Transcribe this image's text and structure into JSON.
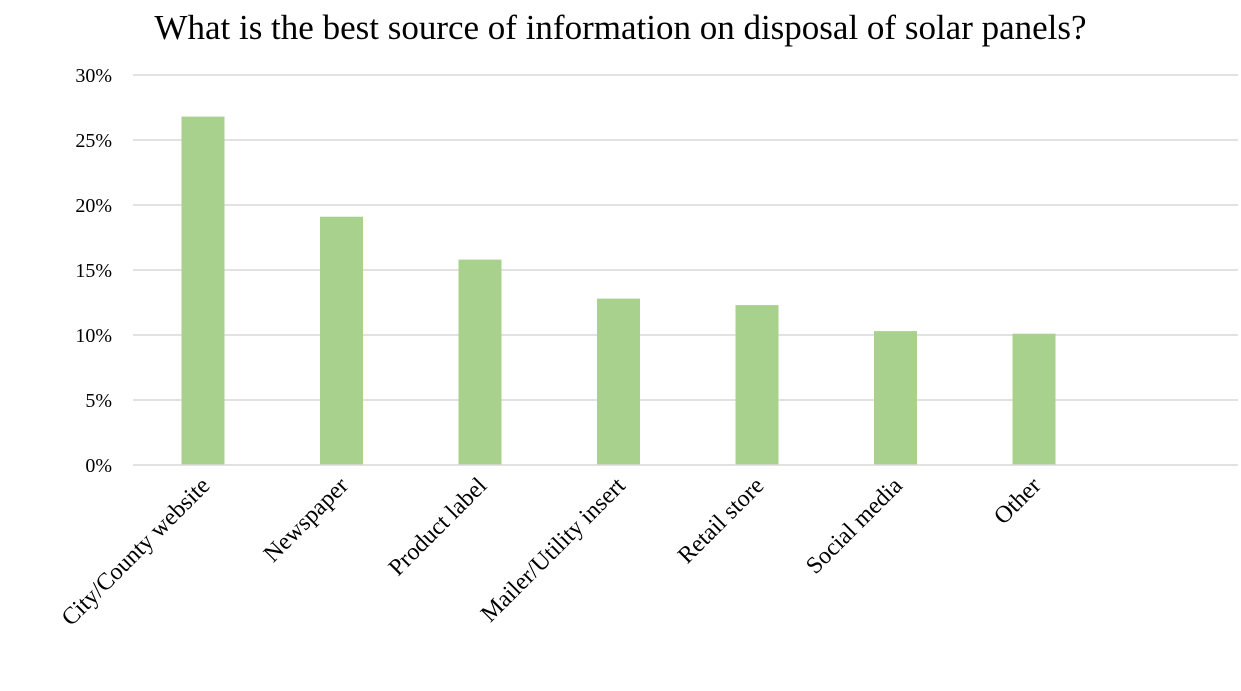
{
  "chart_data": {
    "type": "bar",
    "title": "What is the best source of information on disposal of solar panels?",
    "xlabel": "",
    "ylabel": "",
    "categories": [
      "City/County website",
      "Newspaper",
      "Product label",
      "Mailer/Utility insert",
      "Retail store",
      "Social media",
      "Other"
    ],
    "values": [
      26.8,
      19.1,
      15.8,
      12.8,
      12.3,
      10.3,
      10.1
    ],
    "ylim": [
      0,
      30
    ],
    "yticks": [
      0,
      5,
      10,
      15,
      20,
      25,
      30
    ],
    "ytick_labels": [
      "0%",
      "5%",
      "10%",
      "15%",
      "20%",
      "25%",
      "30%"
    ],
    "grid": true,
    "legend": "none",
    "bar_color": "#a9d18e",
    "grid_color": "#d9d9d9"
  }
}
